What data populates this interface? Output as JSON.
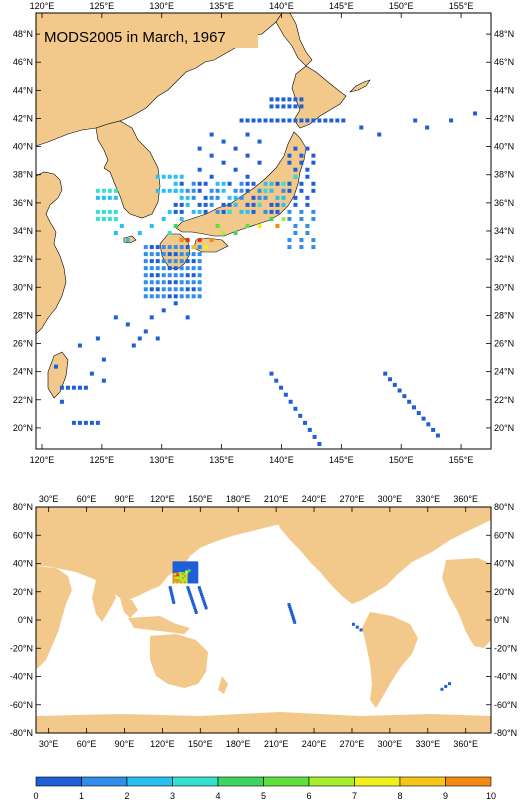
{
  "top_map": {
    "title": "MODS2005 in March, 1967",
    "x_ticks": [
      "120°E",
      "125°E",
      "130°E",
      "135°E",
      "140°E",
      "145°E",
      "150°E",
      "155°E"
    ],
    "y_ticks": [
      "48°N",
      "46°N",
      "44°N",
      "42°N",
      "40°N",
      "38°N",
      "36°N",
      "34°N",
      "32°N",
      "30°N",
      "28°N",
      "26°N",
      "24°N",
      "22°N",
      "20°N"
    ],
    "lon_range": [
      119.5,
      157.5
    ],
    "lat_range": [
      18.5,
      49.5
    ]
  },
  "bottom_map": {
    "x_ticks": [
      "30°E",
      "60°E",
      "90°E",
      "120°E",
      "150°E",
      "180°E",
      "210°E",
      "240°E",
      "270°E",
      "300°E",
      "330°E",
      "360°E"
    ],
    "y_ticks": [
      "80°N",
      "60°N",
      "40°N",
      "20°N",
      "0°N",
      "-20°N",
      "-40°N",
      "-60°N",
      "-80°N"
    ],
    "lon_range": [
      20,
      380
    ],
    "lat_range": [
      -80,
      80
    ]
  },
  "colorbar": {
    "labels": [
      "0",
      "1",
      "2",
      "3",
      "4",
      "5",
      "6",
      "7",
      "8",
      "9",
      "10"
    ],
    "colors": [
      "#1f5fd6",
      "#2f8ee8",
      "#29c0ef",
      "#36e0cf",
      "#3fd35f",
      "#5fe03f",
      "#a8ee2f",
      "#f1f01c",
      "#f7c51a",
      "#f28a15",
      "#e2380e"
    ]
  },
  "colors": {
    "land": "#f3c98b",
    "ocean": "#ffffff",
    "frame": "#000000"
  }
}
